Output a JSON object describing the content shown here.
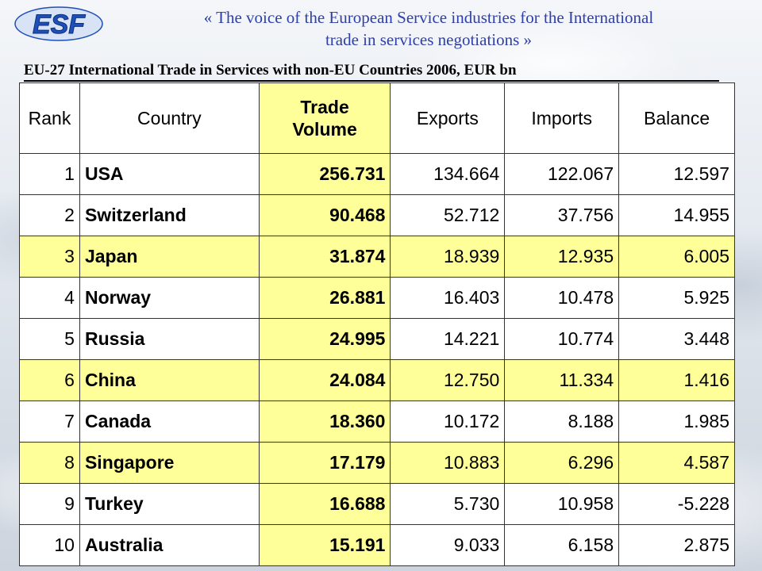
{
  "header": {
    "logo_text": "ESF",
    "tagline_line1": "« The voice of the European Service industries for the International",
    "tagline_line2": "trade in services negotiations »",
    "subtitle": "EU-27 International Trade in Services with non-EU Countries 2006, EUR bn"
  },
  "colors": {
    "highlight": "#ffff99",
    "logo_blue": "#1f4fb8",
    "tagline": "#2f3fa8"
  },
  "table": {
    "headers": {
      "rank": "Rank",
      "country": "Country",
      "trade_volume_line1": "Trade",
      "trade_volume_line2": "Volume",
      "exports": "Exports",
      "imports": "Imports",
      "balance": "Balance"
    },
    "rows": [
      {
        "rank": "1",
        "country": "USA",
        "trade_volume": "256.731",
        "exports": "134.664",
        "imports": "122.067",
        "balance": "12.597"
      },
      {
        "rank": "2",
        "country": "Switzerland",
        "trade_volume": "90.468",
        "exports": "52.712",
        "imports": "37.756",
        "balance": "14.955"
      },
      {
        "rank": "3",
        "country": "Japan",
        "trade_volume": "31.874",
        "exports": "18.939",
        "imports": "12.935",
        "balance": "6.005"
      },
      {
        "rank": "4",
        "country": "Norway",
        "trade_volume": "26.881",
        "exports": "16.403",
        "imports": "10.478",
        "balance": "5.925"
      },
      {
        "rank": "5",
        "country": "Russia",
        "trade_volume": "24.995",
        "exports": "14.221",
        "imports": "10.774",
        "balance": "3.448"
      },
      {
        "rank": "6",
        "country": "China",
        "trade_volume": "24.084",
        "exports": "12.750",
        "imports": "11.334",
        "balance": "1.416"
      },
      {
        "rank": "7",
        "country": "Canada",
        "trade_volume": "18.360",
        "exports": "10.172",
        "imports": "8.188",
        "balance": "1.985"
      },
      {
        "rank": "8",
        "country": "Singapore",
        "trade_volume": "17.179",
        "exports": "10.883",
        "imports": "6.296",
        "balance": "4.587"
      },
      {
        "rank": "9",
        "country": "Turkey",
        "trade_volume": "16.688",
        "exports": "5.730",
        "imports": "10.958",
        "balance": "-5.228"
      },
      {
        "rank": "10",
        "country": "Australia",
        "trade_volume": "15.191",
        "exports": "9.033",
        "imports": "6.158",
        "balance": "2.875"
      }
    ]
  }
}
